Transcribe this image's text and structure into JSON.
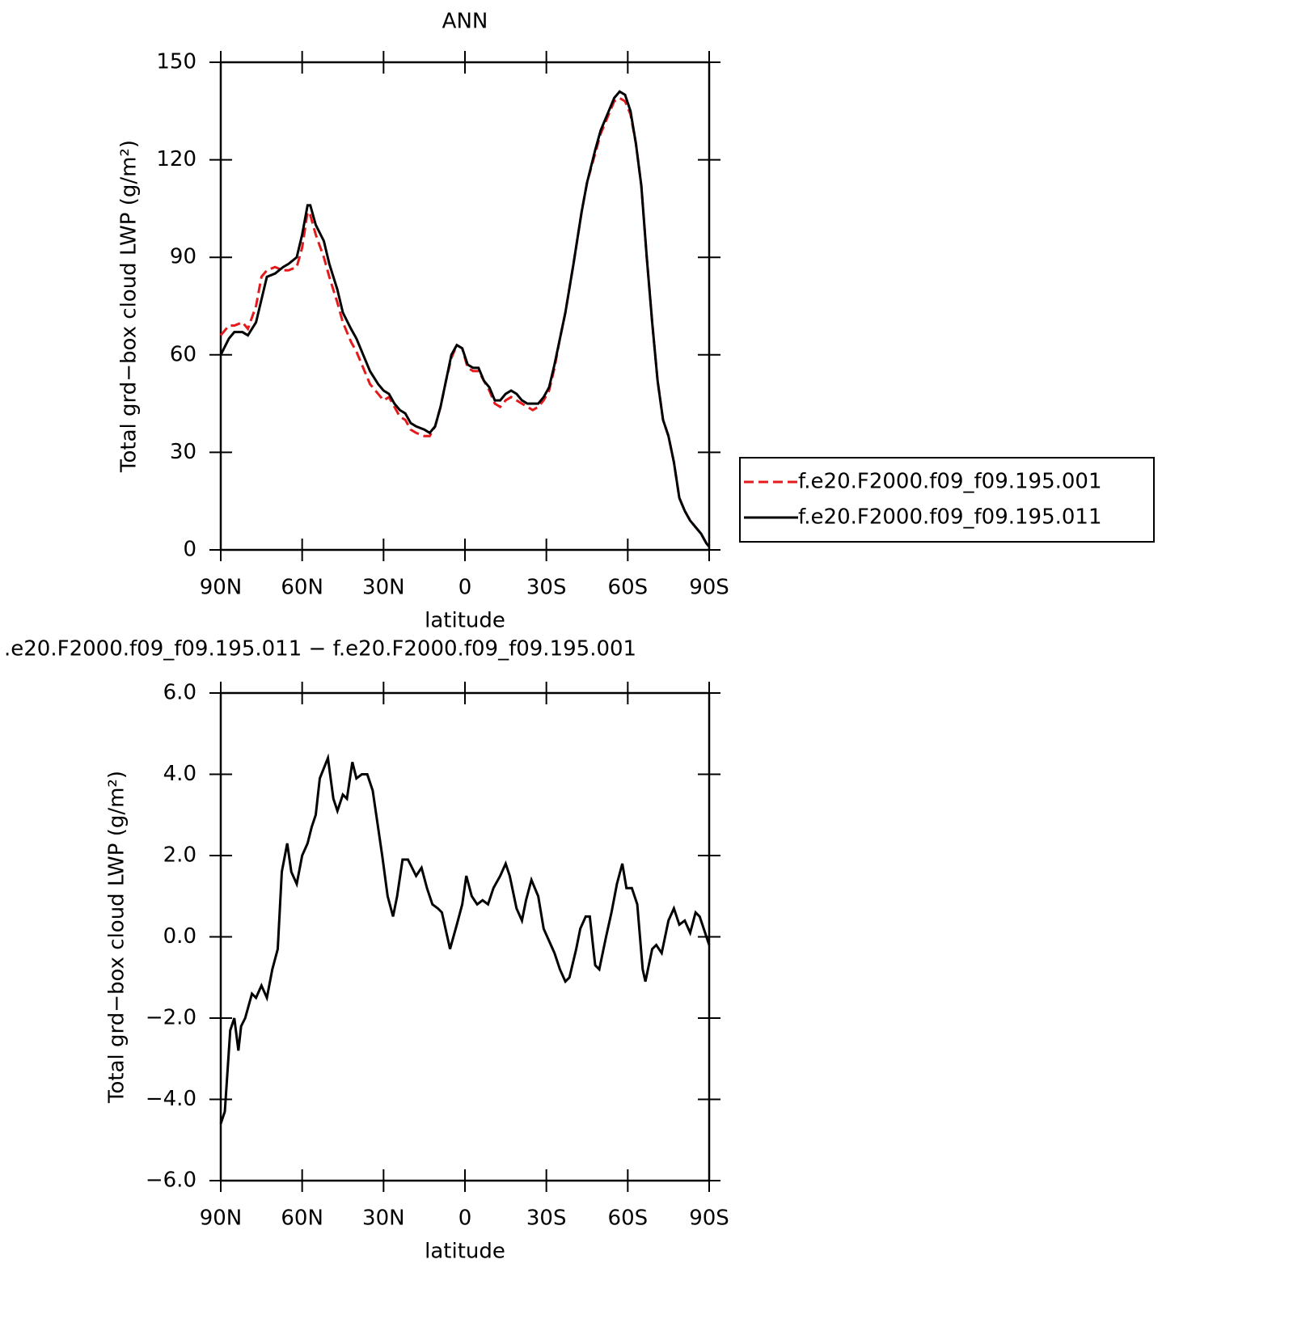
{
  "chart_data": [
    {
      "type": "line",
      "title": "ANN",
      "xlabel": "latitude",
      "ylabel": "Total grd−box cloud LWP (g/m²)",
      "xlim": [
        90,
        -90
      ],
      "ylim": [
        0,
        150
      ],
      "xticks": [
        {
          "value": 90,
          "label": "90N"
        },
        {
          "value": 60,
          "label": "60N"
        },
        {
          "value": 30,
          "label": "30N"
        },
        0,
        {
          "value": -30,
          "label": "30S"
        },
        {
          "value": -60,
          "label": "60S"
        },
        {
          "value": -90,
          "label": "90S"
        }
      ],
      "yticks": [
        0,
        30,
        60,
        90,
        120,
        150
      ],
      "legend": "right",
      "x": [
        90,
        87,
        85,
        82,
        80,
        77,
        75,
        73,
        70,
        67,
        65,
        62,
        60,
        58,
        57,
        55,
        52,
        50,
        47,
        45,
        42,
        40,
        37,
        35,
        32,
        30,
        28,
        26,
        24,
        22,
        20,
        18,
        15,
        13,
        11,
        9,
        7,
        5,
        3,
        1,
        -1,
        -3,
        -5,
        -7,
        -9,
        -11,
        -13,
        -15,
        -17,
        -19,
        -21,
        -23,
        -25,
        -27,
        -29,
        -31,
        -33,
        -35,
        -37,
        -40,
        -43,
        -45,
        -48,
        -50,
        -53,
        -55,
        -57,
        -59,
        -61,
        -63,
        -65,
        -67,
        -69,
        -71,
        -73,
        -75,
        -77,
        -79,
        -81,
        -83,
        -85,
        -87,
        -89,
        -90
      ],
      "series": [
        {
          "name": "f.e20.F2000.f09_f09.195.001",
          "color": "#e41a1c",
          "dash": "dashed",
          "values": [
            66,
            69,
            69,
            70,
            68,
            75,
            84,
            86,
            87,
            86,
            86,
            87,
            93,
            104,
            103,
            97,
            90,
            84,
            76,
            70,
            64,
            61,
            55,
            51,
            48,
            46,
            47,
            44,
            41,
            40,
            37,
            36,
            35,
            35,
            38,
            44,
            52,
            59,
            63,
            62,
            56,
            55,
            55,
            52,
            49,
            45,
            44,
            46,
            47,
            46,
            45,
            44,
            43,
            44,
            46,
            49,
            56,
            65,
            73,
            88,
            104,
            113,
            122,
            128,
            134,
            138,
            139,
            138,
            134,
            125,
            112,
            90,
            70,
            52,
            40,
            35,
            27,
            16,
            12,
            9,
            7,
            5,
            2,
            1
          ]
        },
        {
          "name": "f.e20.F2000.f09_f09.195.011",
          "color": "#000000",
          "dash": "solid",
          "values": [
            60,
            65,
            67,
            67,
            66,
            70,
            77,
            84,
            85,
            87,
            88,
            90,
            97,
            106,
            106,
            100,
            95,
            88,
            80,
            73,
            68,
            65,
            59,
            55,
            51,
            49,
            48,
            45,
            43,
            42,
            39,
            38,
            37,
            36,
            38,
            44,
            52,
            60,
            63,
            62,
            57,
            56,
            56,
            52,
            50,
            46,
            46,
            48,
            49,
            48,
            46,
            45,
            45,
            45,
            47,
            50,
            57,
            65,
            73,
            88,
            104,
            113,
            123,
            129,
            135,
            139,
            141,
            140,
            135,
            125,
            112,
            90,
            70,
            52,
            40,
            35,
            27,
            16,
            12,
            9,
            7,
            5,
            2,
            1
          ]
        }
      ]
    },
    {
      "type": "line",
      "title": ".e20.F2000.f09_f09.195.011 − f.e20.F2000.f09_f09.195.001",
      "xlabel": "latitude",
      "ylabel": "Total grd−box cloud LWP (g/m²)",
      "xlim": [
        90,
        -90
      ],
      "ylim": [
        -6,
        6
      ],
      "xticks": [
        {
          "value": 90,
          "label": "90N"
        },
        {
          "value": 60,
          "label": "60N"
        },
        {
          "value": 30,
          "label": "30N"
        },
        0,
        {
          "value": -30,
          "label": "30S"
        },
        {
          "value": -60,
          "label": "60S"
        },
        {
          "value": -90,
          "label": "90S"
        }
      ],
      "yticks": [
        {
          "value": -6,
          "label": "−6.0"
        },
        {
          "value": -4,
          "label": "−4.0"
        },
        {
          "value": -2,
          "label": "−2.0"
        },
        {
          "value": 0,
          "label": "0.0"
        },
        {
          "value": 2,
          "label": "2.0"
        },
        {
          "value": 4,
          "label": "4.0"
        },
        {
          "value": 6,
          "label": "6.0"
        }
      ],
      "x": [
        90,
        88.5,
        86.5,
        85,
        83.5,
        82.5,
        81,
        78.5,
        77,
        75,
        73,
        71,
        69,
        67.5,
        65.5,
        64,
        62,
        60,
        58,
        56.5,
        55,
        53.5,
        50.5,
        48.5,
        47,
        45,
        43.5,
        41.5,
        40,
        38,
        36,
        34,
        30.5,
        28.5,
        26.5,
        25,
        23,
        21,
        18,
        16,
        14,
        12,
        10,
        8.5,
        5.5,
        3,
        1,
        -0.5,
        -2.5,
        -4.5,
        -6.5,
        -8.5,
        -10.5,
        -13,
        -15,
        -16.5,
        -19,
        -21,
        -22.5,
        -24.5,
        -27,
        -29,
        -31,
        -33,
        -35,
        -37,
        -38.5,
        -41,
        -42.5,
        -44.5,
        -46,
        -48,
        -49.5,
        -52,
        -54,
        -56,
        -58,
        -59.5,
        -61.5,
        -63.5,
        -65.5,
        -66.5,
        -69,
        -70.5,
        -72.5,
        -75,
        -77,
        -79,
        -81,
        -83,
        -85,
        -86.5,
        -89,
        -90
      ],
      "series": [
        {
          "color": "#000000",
          "dash": "solid",
          "values": [
            -4.6,
            -4.3,
            -2.3,
            -2.0,
            -2.8,
            -2.2,
            -2.0,
            -1.4,
            -1.5,
            -1.2,
            -1.5,
            -0.8,
            -0.3,
            1.6,
            2.3,
            1.6,
            1.3,
            2.0,
            2.3,
            2.7,
            3.0,
            3.9,
            4.4,
            3.4,
            3.1,
            3.5,
            3.4,
            4.3,
            3.9,
            4.0,
            4.0,
            3.6,
            2.0,
            1.0,
            0.5,
            1.0,
            1.9,
            1.9,
            1.5,
            1.7,
            1.2,
            0.8,
            0.7,
            0.6,
            -0.3,
            0.3,
            0.8,
            1.5,
            1.0,
            0.8,
            0.9,
            0.8,
            1.2,
            1.5,
            1.8,
            1.5,
            0.7,
            0.4,
            0.9,
            1.4,
            1.0,
            0.2,
            -0.1,
            -0.4,
            -0.8,
            -1.1,
            -1.0,
            -0.3,
            0.2,
            0.5,
            0.5,
            -0.7,
            -0.8,
            0.0,
            0.6,
            1.3,
            1.8,
            1.2,
            1.2,
            0.8,
            -0.8,
            -1.1,
            -0.3,
            -0.2,
            -0.4,
            0.4,
            0.7,
            0.3,
            0.4,
            0.1,
            0.6,
            0.5,
            0.0,
            -0.2
          ]
        }
      ]
    }
  ]
}
